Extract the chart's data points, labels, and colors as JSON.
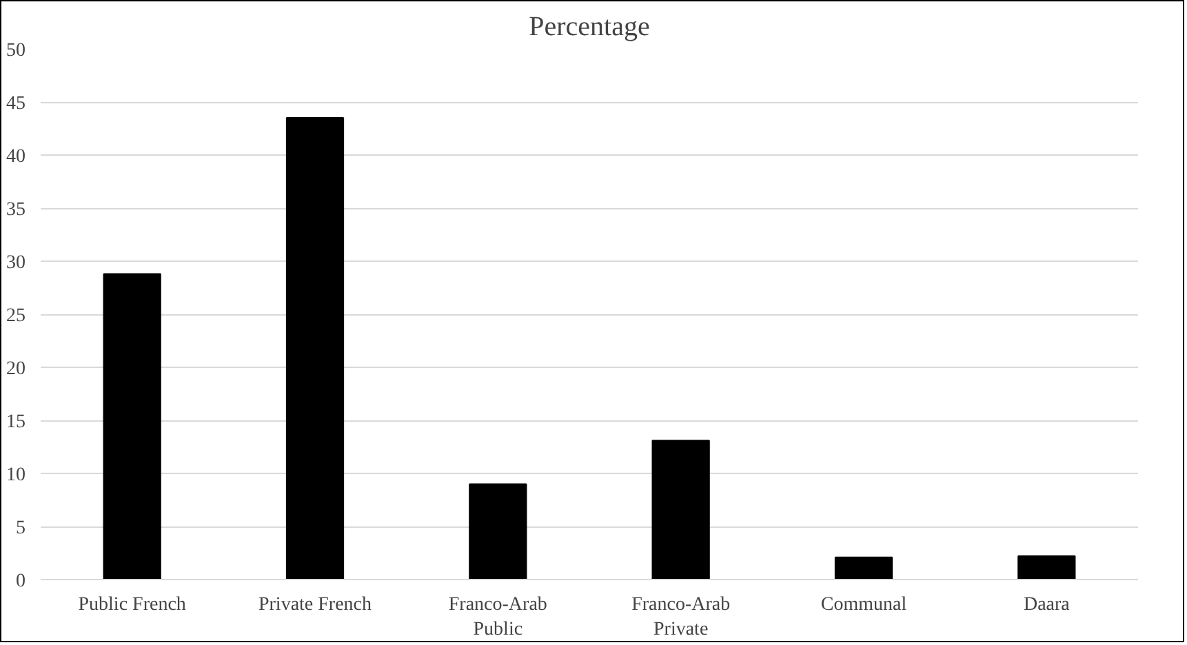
{
  "chart_data": {
    "type": "bar",
    "title": "Percentage",
    "categories": [
      "Public French",
      "Private French",
      "Franco-Arab Public",
      "Franco-Arab Private",
      "Communal",
      "Daara"
    ],
    "values": [
      28.8,
      43.5,
      9.0,
      13.1,
      2.1,
      2.2
    ],
    "color": "#000000",
    "ylim": [
      0,
      50
    ],
    "yticks": [
      0,
      5,
      10,
      15,
      20,
      25,
      30,
      35,
      40,
      45,
      50
    ],
    "grid": "y",
    "legend": false
  }
}
